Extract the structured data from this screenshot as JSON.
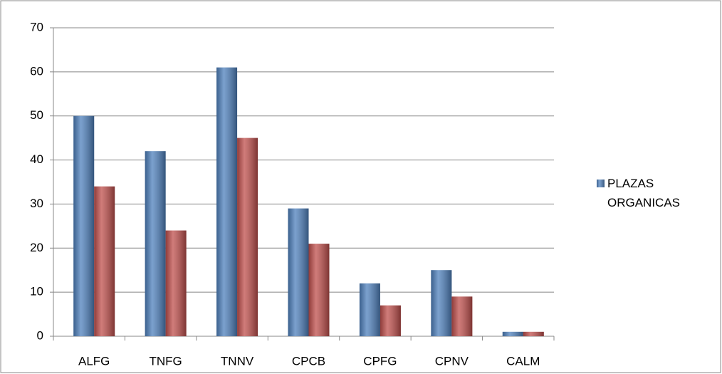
{
  "chart_data": {
    "type": "bar",
    "categories": [
      "ALFG",
      "TNFG",
      "TNNV",
      "CPCB",
      "CPFG",
      "CPNV",
      "CALM"
    ],
    "series": [
      {
        "name": "PLAZAS ORGANICAS",
        "color": "#4f81bd",
        "values": [
          50,
          42,
          61,
          29,
          12,
          15,
          1
        ]
      },
      {
        "color": "#c0504d",
        "values": [
          34,
          24,
          45,
          21,
          7,
          9,
          1
        ]
      }
    ],
    "ylim": [
      0,
      70
    ],
    "yticks": [
      0,
      10,
      20,
      30,
      40,
      50,
      60,
      70
    ],
    "grid": true,
    "legend": "right"
  }
}
